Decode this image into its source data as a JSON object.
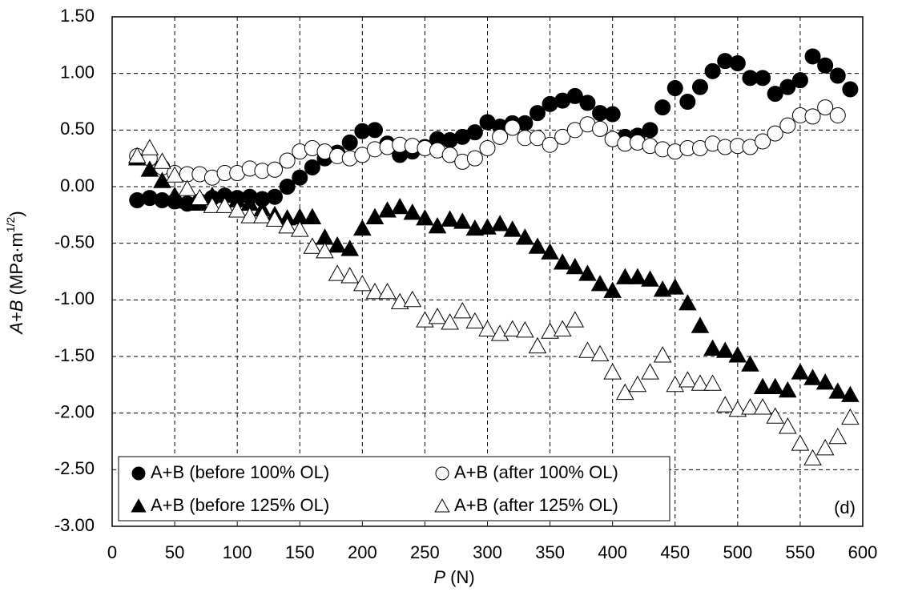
{
  "chart_data": {
    "type": "scatter",
    "xlabel_parts": [
      "P",
      " (N)"
    ],
    "ylabel_parts": [
      "A",
      "+",
      "B",
      " (MPa·m",
      "1/2",
      ")"
    ],
    "annotation": "(d)",
    "xlim": [
      0,
      600
    ],
    "xticks": [
      0,
      50,
      100,
      150,
      200,
      250,
      300,
      350,
      400,
      450,
      500,
      550,
      600
    ],
    "ylim": [
      -3,
      1.5
    ],
    "yticks": [
      {
        "value": -3,
        "label": "-3.00"
      },
      {
        "value": -2.5,
        "label": "-2.50"
      },
      {
        "value": -2,
        "label": "-2.00"
      },
      {
        "value": -1.5,
        "label": "-1.50"
      },
      {
        "value": -1,
        "label": "-1.00"
      },
      {
        "value": -0.5,
        "label": "-0.50"
      },
      {
        "value": 0,
        "label": "0.00"
      },
      {
        "value": 0.5,
        "label": "0.50"
      },
      {
        "value": 1,
        "label": "1.00"
      },
      {
        "value": 1.5,
        "label": "1.50"
      }
    ],
    "grid": true,
    "legend": "lower left",
    "series": [
      {
        "name": "A+B (before 100% OL)",
        "color": "#000000",
        "marker": "circle",
        "filled": true,
        "x": [
          20,
          30,
          40,
          50,
          60,
          70,
          80,
          90,
          100,
          110,
          120,
          130,
          140,
          150,
          160,
          170,
          180,
          190,
          200,
          210,
          220,
          230,
          240,
          250,
          260,
          270,
          280,
          290,
          300,
          310,
          320,
          330,
          340,
          350,
          360,
          370,
          380,
          390,
          400,
          410,
          420,
          430,
          440,
          450,
          460,
          470,
          480,
          490,
          500,
          510,
          520,
          530,
          540,
          550,
          560,
          570,
          580,
          590
        ],
        "values": [
          -0.12,
          -0.1,
          -0.12,
          -0.13,
          -0.15,
          -0.13,
          -0.1,
          -0.08,
          -0.1,
          -0.09,
          -0.11,
          -0.09,
          0.0,
          0.08,
          0.17,
          0.25,
          0.3,
          0.39,
          0.49,
          0.5,
          0.38,
          0.28,
          0.31,
          0.35,
          0.42,
          0.41,
          0.44,
          0.48,
          0.57,
          0.53,
          0.56,
          0.56,
          0.65,
          0.73,
          0.76,
          0.8,
          0.74,
          0.65,
          0.64,
          0.44,
          0.45,
          0.5,
          0.7,
          0.87,
          0.75,
          0.88,
          1.02,
          1.11,
          1.09,
          0.96,
          0.96,
          0.82,
          0.88,
          0.94,
          1.15,
          1.07,
          0.98,
          0.86
        ]
      },
      {
        "name": "A+B (after 100% OL)",
        "color": "#000000",
        "marker": "circle",
        "filled": false,
        "x": [
          20,
          30,
          40,
          50,
          60,
          70,
          80,
          90,
          100,
          110,
          120,
          130,
          140,
          150,
          160,
          170,
          180,
          190,
          200,
          210,
          220,
          230,
          240,
          250,
          260,
          270,
          280,
          290,
          300,
          310,
          320,
          330,
          340,
          350,
          360,
          370,
          380,
          390,
          400,
          410,
          420,
          430,
          440,
          450,
          460,
          470,
          480,
          490,
          500,
          510,
          520,
          530,
          540,
          550,
          560,
          570,
          580
        ],
        "values": [
          0.27,
          0.25,
          0.17,
          0.12,
          0.11,
          0.11,
          0.08,
          0.12,
          0.12,
          0.16,
          0.14,
          0.15,
          0.23,
          0.31,
          0.34,
          0.31,
          0.27,
          0.25,
          0.28,
          0.33,
          0.35,
          0.37,
          0.36,
          0.34,
          0.32,
          0.28,
          0.22,
          0.25,
          0.34,
          0.44,
          0.52,
          0.43,
          0.43,
          0.37,
          0.44,
          0.5,
          0.55,
          0.51,
          0.42,
          0.38,
          0.39,
          0.36,
          0.33,
          0.31,
          0.34,
          0.34,
          0.38,
          0.35,
          0.36,
          0.35,
          0.4,
          0.47,
          0.54,
          0.63,
          0.62,
          0.7,
          0.63
        ]
      },
      {
        "name": "A+B (before 125% OL)",
        "color": "#000000",
        "marker": "triangle",
        "filled": true,
        "x": [
          20,
          30,
          40,
          50,
          60,
          70,
          80,
          90,
          100,
          110,
          120,
          130,
          140,
          150,
          160,
          170,
          180,
          190,
          200,
          210,
          220,
          230,
          240,
          250,
          260,
          270,
          280,
          290,
          300,
          310,
          320,
          330,
          340,
          350,
          360,
          370,
          380,
          390,
          400,
          410,
          420,
          430,
          440,
          450,
          460,
          470,
          480,
          490,
          500,
          510,
          520,
          530,
          540,
          550,
          560,
          570,
          580,
          590
        ],
        "values": [
          0.25,
          0.15,
          0.05,
          -0.08,
          -0.13,
          -0.15,
          -0.08,
          -0.08,
          -0.12,
          -0.15,
          -0.2,
          -0.25,
          -0.28,
          -0.27,
          -0.27,
          -0.45,
          -0.52,
          -0.55,
          -0.37,
          -0.27,
          -0.21,
          -0.18,
          -0.23,
          -0.28,
          -0.35,
          -0.29,
          -0.31,
          -0.37,
          -0.36,
          -0.33,
          -0.38,
          -0.45,
          -0.53,
          -0.58,
          -0.67,
          -0.71,
          -0.77,
          -0.86,
          -0.92,
          -0.8,
          -0.8,
          -0.82,
          -0.91,
          -0.89,
          -1.03,
          -1.23,
          -1.43,
          -1.45,
          -1.49,
          -1.57,
          -1.77,
          -1.77,
          -1.8,
          -1.64,
          -1.69,
          -1.73,
          -1.81,
          -1.84
        ]
      },
      {
        "name": "A+B (after 125% OL)",
        "color": "#000000",
        "marker": "triangle",
        "filled": false,
        "x": [
          20,
          30,
          40,
          50,
          60,
          70,
          80,
          90,
          100,
          110,
          120,
          130,
          140,
          150,
          160,
          170,
          180,
          190,
          200,
          210,
          220,
          230,
          240,
          250,
          260,
          270,
          280,
          290,
          300,
          310,
          320,
          330,
          340,
          350,
          360,
          370,
          380,
          390,
          400,
          410,
          420,
          430,
          440,
          450,
          460,
          470,
          480,
          490,
          500,
          510,
          520,
          530,
          540,
          550,
          560,
          570,
          580,
          590
        ],
        "values": [
          0.27,
          0.34,
          0.22,
          0.1,
          -0.02,
          -0.1,
          -0.17,
          -0.17,
          -0.21,
          -0.26,
          -0.26,
          -0.29,
          -0.35,
          -0.38,
          -0.53,
          -0.57,
          -0.77,
          -0.79,
          -0.86,
          -0.93,
          -0.93,
          -1.02,
          -1.0,
          -1.18,
          -1.15,
          -1.2,
          -1.1,
          -1.19,
          -1.26,
          -1.3,
          -1.26,
          -1.27,
          -1.41,
          -1.28,
          -1.26,
          -1.18,
          -1.45,
          -1.48,
          -1.64,
          -1.82,
          -1.75,
          -1.64,
          -1.49,
          -1.75,
          -1.71,
          -1.74,
          -1.74,
          -1.93,
          -1.97,
          -1.95,
          -1.95,
          -2.03,
          -2.12,
          -2.27,
          -2.4,
          -2.31,
          -2.21,
          -2.04
        ]
      }
    ]
  }
}
